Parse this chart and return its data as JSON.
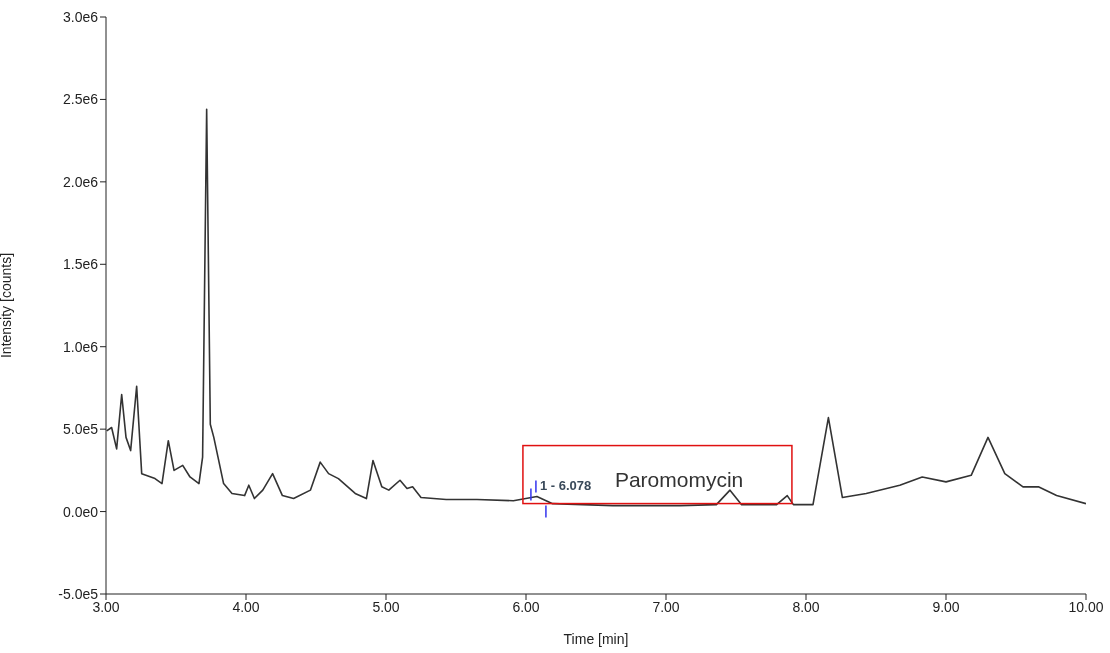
{
  "chart_data": {
    "type": "line",
    "xlabel": "Time [min]",
    "ylabel": "Intensity [counts]",
    "xlim": [
      3,
      10
    ],
    "xticks": [
      {
        "value": 3,
        "label": "3.00"
      },
      {
        "value": 4,
        "label": "4.00"
      },
      {
        "value": 5,
        "label": "5.00"
      },
      {
        "value": 6,
        "label": "6.00"
      },
      {
        "value": 7,
        "label": "7.00"
      },
      {
        "value": 8,
        "label": "8.00"
      },
      {
        "value": 9,
        "label": "9.00"
      },
      {
        "value": 10,
        "label": "10.00"
      }
    ],
    "ylim": [
      -500000,
      3000000
    ],
    "yticks": [
      {
        "value": -500000,
        "label": "-5.0e5"
      },
      {
        "value": 0,
        "label": "0.0e0"
      },
      {
        "value": 500000,
        "label": "5.0e5"
      },
      {
        "value": 1000000,
        "label": "1.0e6"
      },
      {
        "value": 1500000,
        "label": "1.5e6"
      },
      {
        "value": 2000000,
        "label": "2.0e6"
      },
      {
        "value": 2500000,
        "label": "2.5e6"
      },
      {
        "value": 3000000,
        "label": "3.0e6"
      }
    ],
    "grid": false,
    "marker": "none",
    "line_style": "solid",
    "series": [
      {
        "color": "#333333",
        "x": [
          3.005,
          3.04,
          3.076,
          3.112,
          3.143,
          3.176,
          3.219,
          3.255,
          3.35,
          3.4,
          3.445,
          3.486,
          3.548,
          3.6,
          3.664,
          3.69,
          3.719,
          3.745,
          3.77,
          3.8,
          3.84,
          3.9,
          3.99,
          4.02,
          4.06,
          4.12,
          4.19,
          4.26,
          4.34,
          4.46,
          4.53,
          4.59,
          4.66,
          4.78,
          4.86,
          4.907,
          4.97,
          5.02,
          5.1,
          5.15,
          5.19,
          5.25,
          5.43,
          5.65,
          5.91,
          6.078,
          6.19,
          6.62,
          7.1,
          7.36,
          7.457,
          7.54,
          7.79,
          7.866,
          7.91,
          8.05,
          8.16,
          8.26,
          8.43,
          8.67,
          8.83,
          9.0,
          9.18,
          9.3,
          9.42,
          9.55,
          9.66,
          9.79,
          10.0
        ],
        "values": [
          490000,
          510000,
          380000,
          710000,
          450000,
          370000,
          760000,
          230000,
          200000,
          170000,
          430000,
          250000,
          280000,
          210000,
          170000,
          330000,
          2440000,
          530000,
          450000,
          330000,
          170000,
          110000,
          97000,
          160000,
          79000,
          130000,
          230000,
          97000,
          79000,
          130000,
          300000,
          230000,
          200000,
          110000,
          79000,
          310000,
          150000,
          130000,
          190000,
          140000,
          150000,
          85000,
          73000,
          73000,
          66000,
          91000,
          48000,
          36000,
          36000,
          42000,
          130000,
          42000,
          42000,
          97000,
          42000,
          42000,
          570000,
          85000,
          110000,
          160000,
          210000,
          180000,
          220000,
          450000,
          230000,
          150000,
          150000,
          97000,
          48000
        ]
      }
    ],
    "annotations": [
      {
        "text": "1 - 6.078",
        "x": 6.078,
        "y": 91000
      },
      "Paromomycin"
    ]
  }
}
